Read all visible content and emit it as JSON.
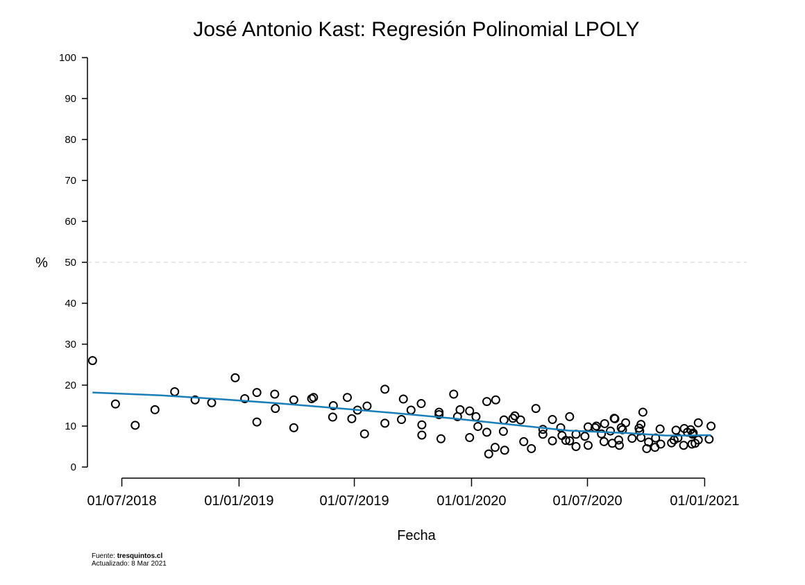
{
  "chart_data": {
    "type": "scatter",
    "title": "José Antonio Kast: Regresión Polinomial LPOLY",
    "xlabel": "Fecha",
    "ylabel": "%",
    "ylim": [
      0,
      100
    ],
    "y_ticks": [
      0,
      10,
      20,
      30,
      40,
      50,
      60,
      70,
      80,
      90,
      100
    ],
    "x_range": [
      "2018-05-08",
      "2021-03-08"
    ],
    "x_ticks": [
      {
        "date": "2018-07-01",
        "label": "01/07/2018"
      },
      {
        "date": "2019-01-01",
        "label": "01/01/2019"
      },
      {
        "date": "2019-07-01",
        "label": "01/07/2019"
      },
      {
        "date": "2020-01-01",
        "label": "01/01/2020"
      },
      {
        "date": "2020-07-01",
        "label": "01/07/2020"
      },
      {
        "date": "2021-01-01",
        "label": "01/01/2021"
      }
    ],
    "reference_line": {
      "y": 50,
      "style": "dashed"
    },
    "grid": false,
    "points": [
      {
        "x": "2018-05-16",
        "y": 26
      },
      {
        "x": "2018-06-21",
        "y": 15.4
      },
      {
        "x": "2018-07-22",
        "y": 10.2
      },
      {
        "x": "2018-08-22",
        "y": 14
      },
      {
        "x": "2018-09-22",
        "y": 18.4
      },
      {
        "x": "2018-10-24",
        "y": 16.4
      },
      {
        "x": "2018-11-19",
        "y": 15.7
      },
      {
        "x": "2018-12-26",
        "y": 21.8
      },
      {
        "x": "2019-01-10",
        "y": 16.7
      },
      {
        "x": "2019-01-29",
        "y": 18.2
      },
      {
        "x": "2019-01-29",
        "y": 11
      },
      {
        "x": "2019-02-26",
        "y": 17.8
      },
      {
        "x": "2019-02-27",
        "y": 14.3
      },
      {
        "x": "2019-03-28",
        "y": 16.4
      },
      {
        "x": "2019-03-28",
        "y": 9.6
      },
      {
        "x": "2019-04-25",
        "y": 16.7
      },
      {
        "x": "2019-04-28",
        "y": 17
      },
      {
        "x": "2019-05-28",
        "y": 12.2
      },
      {
        "x": "2019-05-29",
        "y": 15
      },
      {
        "x": "2019-06-20",
        "y": 17
      },
      {
        "x": "2019-06-27",
        "y": 11.8
      },
      {
        "x": "2019-07-06",
        "y": 13.9
      },
      {
        "x": "2019-07-17",
        "y": 8.1
      },
      {
        "x": "2019-07-21",
        "y": 14.9
      },
      {
        "x": "2019-08-18",
        "y": 10.7
      },
      {
        "x": "2019-08-18",
        "y": 19
      },
      {
        "x": "2019-09-13",
        "y": 11.6
      },
      {
        "x": "2019-09-16",
        "y": 16.6
      },
      {
        "x": "2019-09-28",
        "y": 13.9
      },
      {
        "x": "2019-10-14",
        "y": 15.5
      },
      {
        "x": "2019-10-15",
        "y": 10.3
      },
      {
        "x": "2019-10-15",
        "y": 7.8
      },
      {
        "x": "2019-11-11",
        "y": 13.4
      },
      {
        "x": "2019-11-11",
        "y": 12.8
      },
      {
        "x": "2019-11-14",
        "y": 6.9
      },
      {
        "x": "2019-12-04",
        "y": 17.8
      },
      {
        "x": "2019-12-10",
        "y": 12.3
      },
      {
        "x": "2019-12-14",
        "y": 14
      },
      {
        "x": "2019-12-29",
        "y": 7.2
      },
      {
        "x": "2019-12-29",
        "y": 13.7
      },
      {
        "x": "2020-01-08",
        "y": 12.3
      },
      {
        "x": "2020-01-11",
        "y": 9.9
      },
      {
        "x": "2020-01-25",
        "y": 8.5
      },
      {
        "x": "2020-01-25",
        "y": 16
      },
      {
        "x": "2020-01-28",
        "y": 3.2
      },
      {
        "x": "2020-02-07",
        "y": 4.8
      },
      {
        "x": "2020-02-08",
        "y": 16.4
      },
      {
        "x": "2020-02-20",
        "y": 8.7
      },
      {
        "x": "2020-02-21",
        "y": 11.5
      },
      {
        "x": "2020-02-22",
        "y": 4.1
      },
      {
        "x": "2020-03-06",
        "y": 11.9
      },
      {
        "x": "2020-03-09",
        "y": 12.5
      },
      {
        "x": "2020-03-18",
        "y": 11.5
      },
      {
        "x": "2020-03-23",
        "y": 6.2
      },
      {
        "x": "2020-04-04",
        "y": 4.5
      },
      {
        "x": "2020-04-11",
        "y": 14.3
      },
      {
        "x": "2020-04-22",
        "y": 9.2
      },
      {
        "x": "2020-04-22",
        "y": 8
      },
      {
        "x": "2020-05-07",
        "y": 11.6
      },
      {
        "x": "2020-05-07",
        "y": 6.4
      },
      {
        "x": "2020-05-20",
        "y": 9.6
      },
      {
        "x": "2020-05-22",
        "y": 7.7
      },
      {
        "x": "2020-05-28",
        "y": 6.5
      },
      {
        "x": "2020-06-03",
        "y": 6.4
      },
      {
        "x": "2020-06-03",
        "y": 12.3
      },
      {
        "x": "2020-06-13",
        "y": 8
      },
      {
        "x": "2020-06-13",
        "y": 5
      },
      {
        "x": "2020-06-27",
        "y": 7.5
      },
      {
        "x": "2020-07-02",
        "y": 9.8
      },
      {
        "x": "2020-07-02",
        "y": 5.3
      },
      {
        "x": "2020-07-13",
        "y": 9.6
      },
      {
        "x": "2020-07-15",
        "y": 10
      },
      {
        "x": "2020-07-23",
        "y": 8.1
      },
      {
        "x": "2020-07-27",
        "y": 6.2
      },
      {
        "x": "2020-07-28",
        "y": 10.6
      },
      {
        "x": "2020-08-06",
        "y": 8.8
      },
      {
        "x": "2020-08-09",
        "y": 5.8
      },
      {
        "x": "2020-08-12",
        "y": 11.9
      },
      {
        "x": "2020-08-13",
        "y": 11.8
      },
      {
        "x": "2020-08-19",
        "y": 6.6
      },
      {
        "x": "2020-08-20",
        "y": 5.3
      },
      {
        "x": "2020-08-23",
        "y": 9.6
      },
      {
        "x": "2020-08-25",
        "y": 9.1
      },
      {
        "x": "2020-08-30",
        "y": 10.8
      },
      {
        "x": "2020-09-09",
        "y": 7
      },
      {
        "x": "2020-09-20",
        "y": 9.5
      },
      {
        "x": "2020-09-21",
        "y": 8.8
      },
      {
        "x": "2020-09-23",
        "y": 7.2
      },
      {
        "x": "2020-09-23",
        "y": 10.4
      },
      {
        "x": "2020-09-26",
        "y": 13.4
      },
      {
        "x": "2020-10-02",
        "y": 4.5
      },
      {
        "x": "2020-10-05",
        "y": 6.1
      },
      {
        "x": "2020-10-15",
        "y": 4.8
      },
      {
        "x": "2020-10-16",
        "y": 7.1
      },
      {
        "x": "2020-10-23",
        "y": 9.3
      },
      {
        "x": "2020-10-24",
        "y": 5.6
      },
      {
        "x": "2020-11-10",
        "y": 5.9
      },
      {
        "x": "2020-11-14",
        "y": 6.6
      },
      {
        "x": "2020-11-17",
        "y": 9
      },
      {
        "x": "2020-11-20",
        "y": 7.1
      },
      {
        "x": "2020-11-29",
        "y": 5.3
      },
      {
        "x": "2020-11-30",
        "y": 9.4
      },
      {
        "x": "2020-12-05",
        "y": 8.5
      },
      {
        "x": "2020-12-10",
        "y": 9.1
      },
      {
        "x": "2020-12-12",
        "y": 5.6
      },
      {
        "x": "2020-12-13",
        "y": 8
      },
      {
        "x": "2020-12-14",
        "y": 8.3
      },
      {
        "x": "2020-12-17",
        "y": 5.8
      },
      {
        "x": "2020-12-22",
        "y": 10.8
      },
      {
        "x": "2020-12-22",
        "y": 6.6
      },
      {
        "x": "2021-01-08",
        "y": 6.8
      },
      {
        "x": "2021-01-11",
        "y": 10
      }
    ],
    "fit_line": {
      "x": [
        "2018-05-16",
        "2018-09-01",
        "2018-12-01",
        "2019-03-01",
        "2019-06-01",
        "2019-09-01",
        "2019-12-01",
        "2020-03-01",
        "2020-06-01",
        "2020-09-01",
        "2020-11-01",
        "2020-12-01",
        "2021-01-11"
      ],
      "y": [
        18.2,
        17.5,
        16.6,
        15.6,
        14.4,
        13.2,
        11.9,
        10.4,
        8.9,
        8.3,
        7.7,
        7.7,
        7.8
      ]
    },
    "colors": {
      "fit_line": "#1a7fb8",
      "points": "#000000",
      "reference_line": "#d0d0d0"
    }
  },
  "footer": {
    "source_label": "Fuente: ",
    "source_value": "tresquintos.cl",
    "updated": "Actualizado: 8 Mar 2021"
  }
}
